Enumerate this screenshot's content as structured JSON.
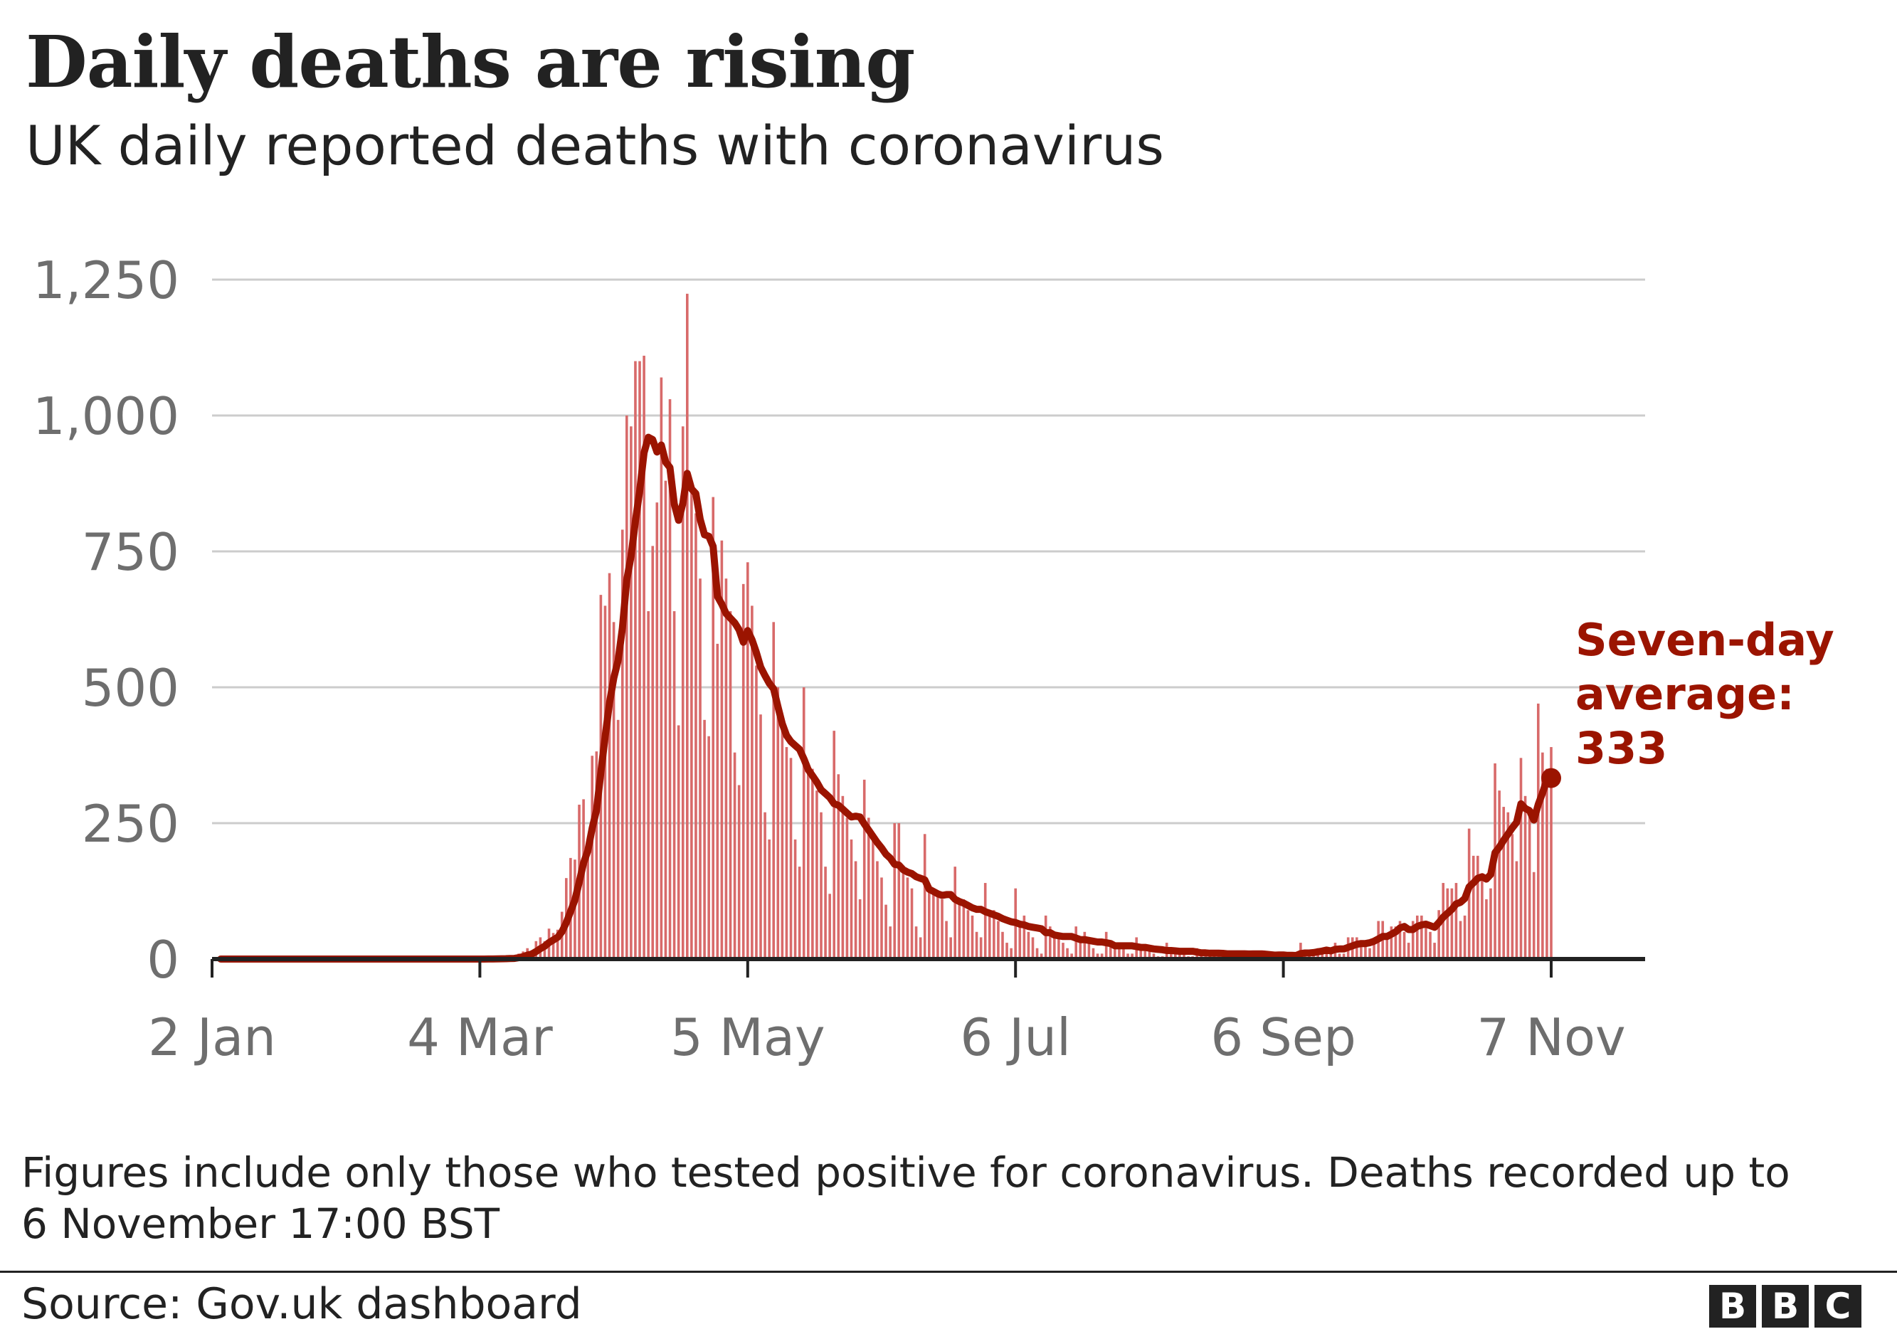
{
  "header": {
    "title": "Daily deaths are rising",
    "subtitle": "UK daily reported deaths with coronavirus"
  },
  "annotation": {
    "line1": "Seven-day",
    "line2": "average:",
    "line3": "333"
  },
  "footnote": {
    "line1": "Figures include only those who tested positive for coronavirus. Deaths recorded up to",
    "line2": "6 November 17:00 BST"
  },
  "source": "Source: Gov.uk dashboard",
  "logo": {
    "letters": [
      "B",
      "B",
      "C"
    ]
  },
  "colors": {
    "bars": "#d86a6a",
    "average_line": "#9b1400",
    "grid": "#cccccc",
    "axis": "#222222"
  },
  "chart_data": {
    "type": "bar",
    "title": "Daily deaths are rising",
    "subtitle": "UK daily reported deaths with coronavirus",
    "x_start": "2 Jan",
    "x_end": "7 Nov",
    "x_ticks": [
      {
        "label": "2 Jan",
        "day": 0
      },
      {
        "label": "4 Mar",
        "day": 62
      },
      {
        "label": "5 May",
        "day": 124
      },
      {
        "label": "6 Jul",
        "day": 186
      },
      {
        "label": "6 Sep",
        "day": 248
      },
      {
        "label": "7 Nov",
        "day": 310
      }
    ],
    "y_ticks": [
      {
        "label": "0",
        "value": 0
      },
      {
        "label": "250",
        "value": 250
      },
      {
        "label": "500",
        "value": 500
      },
      {
        "label": "750",
        "value": 750
      },
      {
        "label": "1,000",
        "value": 1000
      },
      {
        "label": "1,250",
        "value": 1250
      }
    ],
    "ylim": [
      0,
      1250
    ],
    "grid": true,
    "series": [
      {
        "type": "bar",
        "values": [
          0,
          0,
          0,
          0,
          0,
          0,
          0,
          0,
          0,
          0,
          0,
          0,
          0,
          0,
          0,
          0,
          0,
          0,
          0,
          0,
          0,
          0,
          0,
          0,
          0,
          0,
          0,
          0,
          0,
          0,
          0,
          0,
          0,
          0,
          0,
          0,
          0,
          0,
          0,
          0,
          0,
          0,
          0,
          0,
          0,
          0,
          0,
          0,
          0,
          0,
          0,
          0,
          0,
          0,
          0,
          0,
          0,
          0,
          0,
          0,
          0,
          0,
          0,
          0,
          1,
          0,
          1,
          2,
          1,
          2,
          1,
          10,
          14,
          20,
          16,
          33,
          40,
          33,
          56,
          48,
          54,
          87,
          149,
          186,
          183,
          284,
          294,
          214,
          374,
          382,
          670,
          650,
          710,
          620,
          440,
          790,
          1000,
          980,
          1100,
          1100,
          1110,
          640,
          760,
          840,
          1070,
          880,
          1030,
          640,
          430,
          980,
          1224,
          870,
          820,
          700,
          440,
          410,
          850,
          580,
          770,
          700,
          640,
          380,
          320,
          690,
          730,
          650,
          540,
          450,
          270,
          220,
          620,
          500,
          430,
          390,
          370,
          220,
          170,
          500,
          360,
          350,
          310,
          270,
          170,
          120,
          420,
          340,
          300,
          260,
          220,
          180,
          110,
          330,
          260,
          220,
          180,
          150,
          100,
          60,
          250,
          250,
          160,
          150,
          130,
          60,
          40,
          230,
          130,
          130,
          120,
          110,
          70,
          40,
          170,
          100,
          110,
          90,
          80,
          50,
          40,
          140,
          80,
          90,
          70,
          50,
          30,
          20,
          130,
          60,
          80,
          50,
          40,
          20,
          10,
          80,
          60,
          50,
          40,
          30,
          20,
          10,
          60,
          40,
          50,
          30,
          20,
          10,
          10,
          50,
          30,
          20,
          30,
          20,
          10,
          10,
          40,
          20,
          20,
          20,
          10,
          5,
          5,
          30,
          20,
          15,
          15,
          10,
          5,
          5,
          20,
          10,
          15,
          10,
          10,
          5,
          3,
          15,
          10,
          15,
          10,
          10,
          2,
          5,
          15,
          10,
          10,
          5,
          3,
          5,
          5,
          10,
          10,
          8,
          30,
          10,
          5,
          10,
          20,
          20,
          20,
          20,
          30,
          10,
          10,
          40,
          40,
          40,
          30,
          30,
          20,
          30,
          70,
          70,
          40,
          60,
          60,
          70,
          50,
          30,
          70,
          80,
          80,
          70,
          50,
          30,
          90,
          140,
          130,
          130,
          140,
          70,
          80,
          240,
          190,
          190,
          150,
          110,
          130,
          360,
          310,
          280,
          270,
          230,
          180,
          370,
          300,
          280,
          160,
          470,
          380,
          350,
          390
        ]
      },
      {
        "type": "line",
        "name": "Seven-day average",
        "rolling_window": 7,
        "last_value": 333
      }
    ]
  }
}
